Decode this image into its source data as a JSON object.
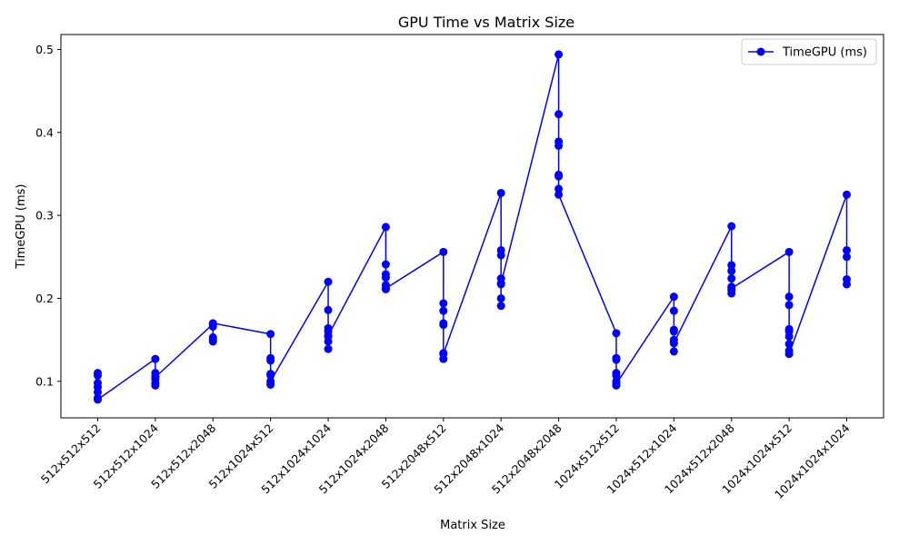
{
  "chart_data": {
    "type": "line",
    "title": "GPU Time vs Matrix Size",
    "xlabel": "Matrix Size",
    "ylabel": "TimeGPU (ms)",
    "ylim": [
      0.056,
      0.518
    ],
    "yticks": [
      0.1,
      0.2,
      0.3,
      0.4,
      0.5
    ],
    "grid": false,
    "legend_position": "top-right",
    "color": "#0000ff",
    "categories": [
      "512x512x512",
      "512x512x1024",
      "512x512x2048",
      "512x1024x512",
      "512x1024x1024",
      "512x1024x2048",
      "512x2048x512",
      "512x2048x1024",
      "512x2048x2048",
      "1024x512x512",
      "1024x512x1024",
      "1024x512x2048",
      "1024x1024x512",
      "1024x1024x1024"
    ],
    "series": [
      {
        "name": "TimeGPU (ms)",
        "points": [
          [
            0,
            0.11
          ],
          [
            0,
            0.107
          ],
          [
            0,
            0.098
          ],
          [
            0,
            0.093
          ],
          [
            0,
            0.087
          ],
          [
            0,
            0.08
          ],
          [
            0,
            0.078
          ],
          [
            1,
            0.127
          ],
          [
            1,
            0.11
          ],
          [
            1,
            0.106
          ],
          [
            1,
            0.103
          ],
          [
            1,
            0.098
          ],
          [
            1,
            0.095
          ],
          [
            1,
            0.105
          ],
          [
            2,
            0.169
          ],
          [
            2,
            0.166
          ],
          [
            2,
            0.153
          ],
          [
            2,
            0.15
          ],
          [
            2,
            0.148
          ],
          [
            2,
            0.17
          ],
          [
            3,
            0.157
          ],
          [
            3,
            0.128
          ],
          [
            3,
            0.125
          ],
          [
            3,
            0.109
          ],
          [
            3,
            0.107
          ],
          [
            3,
            0.097
          ],
          [
            3,
            0.096
          ],
          [
            3,
            0.1
          ],
          [
            4,
            0.22
          ],
          [
            4,
            0.186
          ],
          [
            4,
            0.164
          ],
          [
            4,
            0.16
          ],
          [
            4,
            0.154
          ],
          [
            4,
            0.148
          ],
          [
            4,
            0.139
          ],
          [
            4,
            0.155
          ],
          [
            5,
            0.286
          ],
          [
            5,
            0.241
          ],
          [
            5,
            0.229
          ],
          [
            5,
            0.225
          ],
          [
            5,
            0.216
          ],
          [
            5,
            0.212
          ],
          [
            5,
            0.211
          ],
          [
            5,
            0.212
          ],
          [
            6,
            0.256
          ],
          [
            6,
            0.194
          ],
          [
            6,
            0.185
          ],
          [
            6,
            0.17
          ],
          [
            6,
            0.168
          ],
          [
            6,
            0.134
          ],
          [
            6,
            0.127
          ],
          [
            6,
            0.133
          ],
          [
            7,
            0.327
          ],
          [
            7,
            0.258
          ],
          [
            7,
            0.252
          ],
          [
            7,
            0.224
          ],
          [
            7,
            0.217
          ],
          [
            7,
            0.2
          ],
          [
            7,
            0.191
          ],
          [
            7,
            0.218
          ],
          [
            8,
            0.494
          ],
          [
            8,
            0.422
          ],
          [
            8,
            0.389
          ],
          [
            8,
            0.384
          ],
          [
            8,
            0.349
          ],
          [
            8,
            0.347
          ],
          [
            8,
            0.332
          ],
          [
            8,
            0.325
          ],
          [
            9,
            0.158
          ],
          [
            9,
            0.128
          ],
          [
            9,
            0.126
          ],
          [
            9,
            0.11
          ],
          [
            9,
            0.107
          ],
          [
            9,
            0.1
          ],
          [
            9,
            0.095
          ],
          [
            9,
            0.097
          ],
          [
            10,
            0.202
          ],
          [
            10,
            0.185
          ],
          [
            10,
            0.162
          ],
          [
            10,
            0.16
          ],
          [
            10,
            0.15
          ],
          [
            10,
            0.146
          ],
          [
            10,
            0.136
          ],
          [
            10,
            0.146
          ],
          [
            11,
            0.287
          ],
          [
            11,
            0.24
          ],
          [
            11,
            0.233
          ],
          [
            11,
            0.224
          ],
          [
            11,
            0.214
          ],
          [
            11,
            0.21
          ],
          [
            11,
            0.206
          ],
          [
            11,
            0.212
          ],
          [
            12,
            0.256
          ],
          [
            12,
            0.202
          ],
          [
            12,
            0.192
          ],
          [
            12,
            0.163
          ],
          [
            12,
            0.16
          ],
          [
            12,
            0.154
          ],
          [
            12,
            0.145
          ],
          [
            12,
            0.137
          ],
          [
            12,
            0.133
          ],
          [
            13,
            0.325
          ],
          [
            13,
            0.258
          ],
          [
            13,
            0.25
          ],
          [
            13,
            0.223
          ],
          [
            13,
            0.217
          ]
        ]
      }
    ]
  }
}
